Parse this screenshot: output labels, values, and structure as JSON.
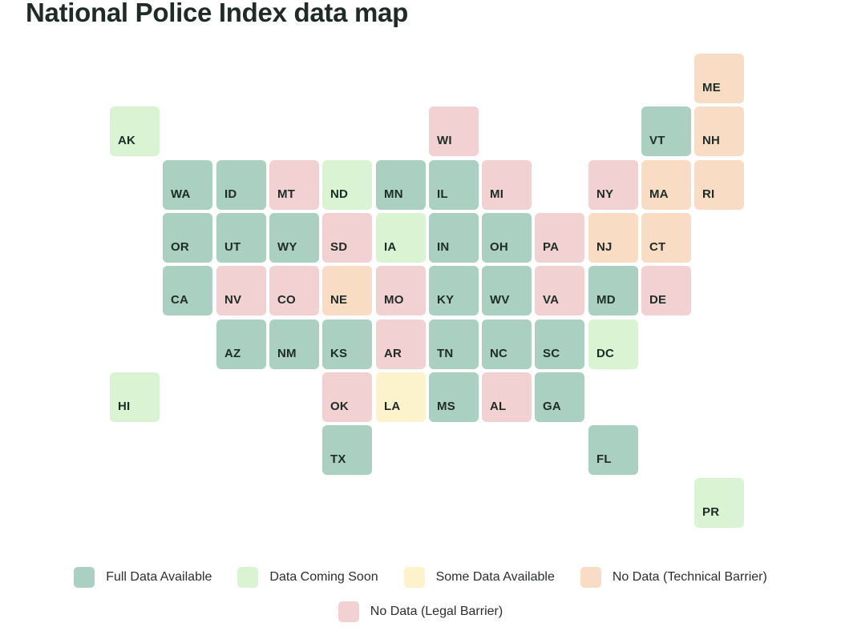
{
  "title": "National Police Index data map",
  "colors": {
    "full": "#a9d0c1",
    "soon": "#d9f3d3",
    "some": "#fcf3cc",
    "tech": "#f8dcc4",
    "legal": "#f2d1d3"
  },
  "legend": [
    {
      "key": "full",
      "label": "Full Data Available"
    },
    {
      "key": "soon",
      "label": "Data Coming Soon"
    },
    {
      "key": "some",
      "label": "Some Data Available"
    },
    {
      "key": "tech",
      "label": "No Data (Technical Barrier)"
    },
    {
      "key": "legal",
      "label": "No Data (Legal Barrier)"
    }
  ],
  "states": [
    {
      "code": "ME",
      "status": "tech",
      "col": 11,
      "row": 0
    },
    {
      "code": "AK",
      "status": "soon",
      "col": 0,
      "row": 1
    },
    {
      "code": "WI",
      "status": "legal",
      "col": 6,
      "row": 1
    },
    {
      "code": "VT",
      "status": "full",
      "col": 10,
      "row": 1
    },
    {
      "code": "NH",
      "status": "tech",
      "col": 11,
      "row": 1
    },
    {
      "code": "WA",
      "status": "full",
      "col": 1,
      "row": 2
    },
    {
      "code": "ID",
      "status": "full",
      "col": 2,
      "row": 2
    },
    {
      "code": "MT",
      "status": "legal",
      "col": 3,
      "row": 2
    },
    {
      "code": "ND",
      "status": "soon",
      "col": 4,
      "row": 2
    },
    {
      "code": "MN",
      "status": "full",
      "col": 5,
      "row": 2
    },
    {
      "code": "IL",
      "status": "full",
      "col": 6,
      "row": 2
    },
    {
      "code": "MI",
      "status": "legal",
      "col": 7,
      "row": 2
    },
    {
      "code": "NY",
      "status": "legal",
      "col": 9,
      "row": 2
    },
    {
      "code": "MA",
      "status": "tech",
      "col": 10,
      "row": 2
    },
    {
      "code": "RI",
      "status": "tech",
      "col": 11,
      "row": 2
    },
    {
      "code": "OR",
      "status": "full",
      "col": 1,
      "row": 3
    },
    {
      "code": "UT",
      "status": "full",
      "col": 2,
      "row": 3
    },
    {
      "code": "WY",
      "status": "full",
      "col": 3,
      "row": 3
    },
    {
      "code": "SD",
      "status": "legal",
      "col": 4,
      "row": 3
    },
    {
      "code": "IA",
      "status": "soon",
      "col": 5,
      "row": 3
    },
    {
      "code": "IN",
      "status": "full",
      "col": 6,
      "row": 3
    },
    {
      "code": "OH",
      "status": "full",
      "col": 7,
      "row": 3
    },
    {
      "code": "PA",
      "status": "legal",
      "col": 8,
      "row": 3
    },
    {
      "code": "NJ",
      "status": "tech",
      "col": 9,
      "row": 3
    },
    {
      "code": "CT",
      "status": "tech",
      "col": 10,
      "row": 3
    },
    {
      "code": "CA",
      "status": "full",
      "col": 1,
      "row": 4
    },
    {
      "code": "NV",
      "status": "legal",
      "col": 2,
      "row": 4
    },
    {
      "code": "CO",
      "status": "legal",
      "col": 3,
      "row": 4
    },
    {
      "code": "NE",
      "status": "tech",
      "col": 4,
      "row": 4
    },
    {
      "code": "MO",
      "status": "legal",
      "col": 5,
      "row": 4
    },
    {
      "code": "KY",
      "status": "full",
      "col": 6,
      "row": 4
    },
    {
      "code": "WV",
      "status": "full",
      "col": 7,
      "row": 4
    },
    {
      "code": "VA",
      "status": "legal",
      "col": 8,
      "row": 4
    },
    {
      "code": "MD",
      "status": "full",
      "col": 9,
      "row": 4
    },
    {
      "code": "DE",
      "status": "legal",
      "col": 10,
      "row": 4
    },
    {
      "code": "AZ",
      "status": "full",
      "col": 2,
      "row": 5
    },
    {
      "code": "NM",
      "status": "full",
      "col": 3,
      "row": 5
    },
    {
      "code": "KS",
      "status": "full",
      "col": 4,
      "row": 5
    },
    {
      "code": "AR",
      "status": "legal",
      "col": 5,
      "row": 5
    },
    {
      "code": "TN",
      "status": "full",
      "col": 6,
      "row": 5
    },
    {
      "code": "NC",
      "status": "full",
      "col": 7,
      "row": 5
    },
    {
      "code": "SC",
      "status": "full",
      "col": 8,
      "row": 5
    },
    {
      "code": "DC",
      "status": "soon",
      "col": 9,
      "row": 5
    },
    {
      "code": "HI",
      "status": "soon",
      "col": 0,
      "row": 6
    },
    {
      "code": "OK",
      "status": "legal",
      "col": 4,
      "row": 6
    },
    {
      "code": "LA",
      "status": "some",
      "col": 5,
      "row": 6
    },
    {
      "code": "MS",
      "status": "full",
      "col": 6,
      "row": 6
    },
    {
      "code": "AL",
      "status": "legal",
      "col": 7,
      "row": 6
    },
    {
      "code": "GA",
      "status": "full",
      "col": 8,
      "row": 6
    },
    {
      "code": "TX",
      "status": "full",
      "col": 4,
      "row": 7
    },
    {
      "code": "FL",
      "status": "full",
      "col": 9,
      "row": 7
    },
    {
      "code": "PR",
      "status": "soon",
      "col": 11,
      "row": 8
    }
  ]
}
